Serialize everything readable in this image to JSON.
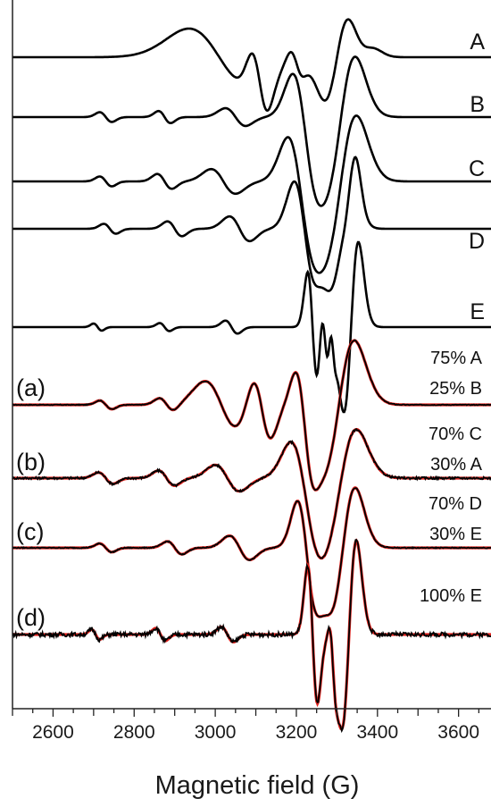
{
  "chart_data": {
    "type": "line",
    "xlabel": "Magnetic field (G)",
    "xlim": [
      2500,
      3680
    ],
    "x_ticks": [
      2600,
      2800,
      3000,
      3200,
      3400,
      3600
    ],
    "x_tick_labels": [
      "2600",
      "2800",
      "3000",
      "3200",
      "3400",
      "3600"
    ],
    "ylabel": "",
    "grid": false,
    "colors": {
      "measured": "#000000",
      "simulated": "#e0211c"
    },
    "reference_spectra": [
      {
        "label": "A",
        "peaks": [
          [
            3010,
            0.8,
            75
          ],
          [
            3110,
            0.9,
            20
          ],
          [
            3200,
            0.35,
            15
          ],
          [
            3300,
            -1.2,
            30
          ],
          [
            3370,
            -0.2,
            25
          ]
        ]
      },
      {
        "label": "B",
        "peaks": [
          [
            2730,
            0.12,
            15
          ],
          [
            2875,
            0.15,
            15
          ],
          [
            3050,
            0.22,
            25
          ],
          [
            3220,
            1.1,
            28
          ],
          [
            3310,
            -1.5,
            35
          ]
        ]
      },
      {
        "label": "C",
        "peaks": [
          [
            2730,
            0.12,
            15
          ],
          [
            2875,
            0.18,
            18
          ],
          [
            3020,
            0.3,
            30
          ],
          [
            3210,
            1.1,
            30
          ],
          [
            3310,
            -1.6,
            38
          ]
        ]
      },
      {
        "label": "D",
        "peaks": [
          [
            2740,
            0.12,
            15
          ],
          [
            2900,
            0.18,
            18
          ],
          [
            3060,
            0.3,
            25
          ],
          [
            3220,
            1.15,
            25
          ],
          [
            3310,
            -1.3,
            25
          ],
          [
            3335,
            -0.7,
            15
          ]
        ]
      },
      {
        "label": "E",
        "peaks": [
          [
            2710,
            0.07,
            10
          ],
          [
            2875,
            0.08,
            12
          ],
          [
            3040,
            0.13,
            15
          ],
          [
            3240,
            1.1,
            12
          ],
          [
            3270,
            0.6,
            8
          ],
          [
            3290,
            0.3,
            6
          ],
          [
            3335,
            -1.7,
            18
          ]
        ]
      }
    ],
    "fits": [
      {
        "label": "(a)",
        "components": [
          "75% A",
          "25% B"
        ],
        "peaks": [
          [
            2730,
            0.1,
            15
          ],
          [
            2880,
            0.15,
            18
          ],
          [
            3015,
            0.55,
            40
          ],
          [
            3115,
            0.75,
            22
          ],
          [
            3220,
            0.9,
            20
          ],
          [
            3305,
            -1.5,
            38
          ]
        ]
      },
      {
        "label": "(b)",
        "components": [
          "70% C",
          "30% A"
        ],
        "peaks": [
          [
            2730,
            0.15,
            18
          ],
          [
            2880,
            0.2,
            20
          ],
          [
            3030,
            0.35,
            30
          ],
          [
            3220,
            1.0,
            32
          ],
          [
            3310,
            -1.3,
            38
          ]
        ]
      },
      {
        "label": "(c)",
        "components": [
          "70% D",
          "30% E"
        ],
        "peaks": [
          [
            2730,
            0.1,
            15
          ],
          [
            2900,
            0.15,
            18
          ],
          [
            3060,
            0.28,
            25
          ],
          [
            3225,
            1.1,
            22
          ],
          [
            3315,
            -1.4,
            30
          ]
        ]
      },
      {
        "label": "(d)",
        "components": [
          "100% E"
        ],
        "peaks": [
          [
            2705,
            0.08,
            10
          ],
          [
            2865,
            0.1,
            12
          ],
          [
            3030,
            0.12,
            15
          ],
          [
            3240,
            1.1,
            12
          ],
          [
            3290,
            0.3,
            7
          ],
          [
            3330,
            -1.5,
            18
          ]
        ]
      }
    ]
  }
}
